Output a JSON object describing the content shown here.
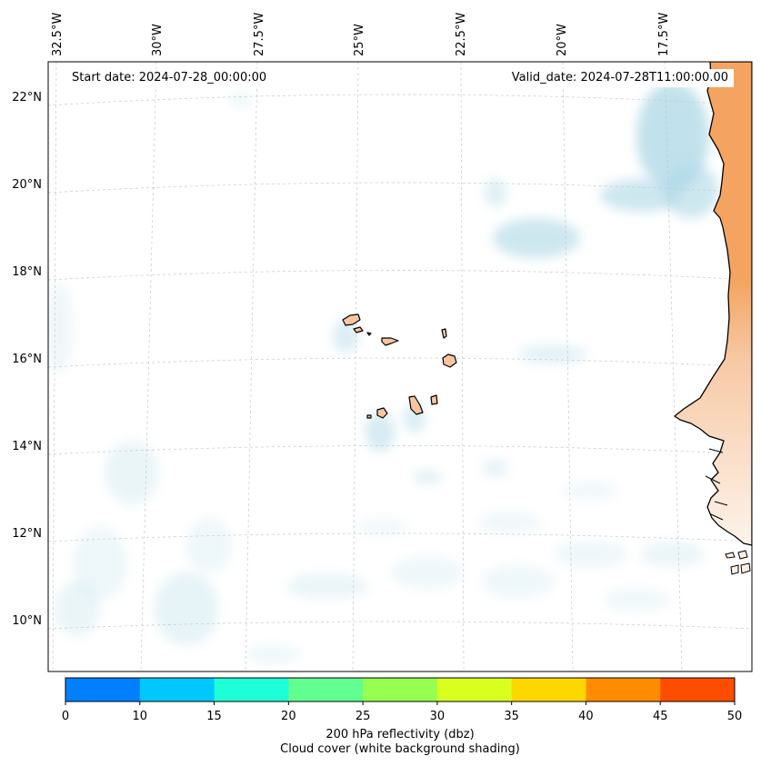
{
  "map": {
    "start_date": "Start date: 2024-07-28_00:00:00",
    "valid_date": "Valid_date: 2024-07-28T11:00:00.00",
    "lon_labels": [
      "32.5°W",
      "30°W",
      "27.5°W",
      "25°W",
      "22.5°W",
      "20°W",
      "17.5°W"
    ],
    "lat_labels": [
      "22°N",
      "20°N",
      "18°N",
      "16°N",
      "14°N",
      "12°N",
      "10°N"
    ],
    "gridlines": true,
    "colors": {
      "land_fill": "#f4a460",
      "cloud_shade": "#add8e6",
      "coastline": "#000000"
    }
  },
  "colorbar": {
    "ticks": [
      "0",
      "10",
      "15",
      "20",
      "25",
      "30",
      "35",
      "40",
      "45",
      "50"
    ],
    "colors": [
      "#0080ff",
      "#00c8ff",
      "#1effd8",
      "#60ff90",
      "#96ff50",
      "#d8ff1e",
      "#ffd700",
      "#ff8c00",
      "#ff4d00"
    ],
    "label_line1": "200 hPa reflectivity (dbz)",
    "label_line2": "Cloud cover (white background shading)"
  }
}
